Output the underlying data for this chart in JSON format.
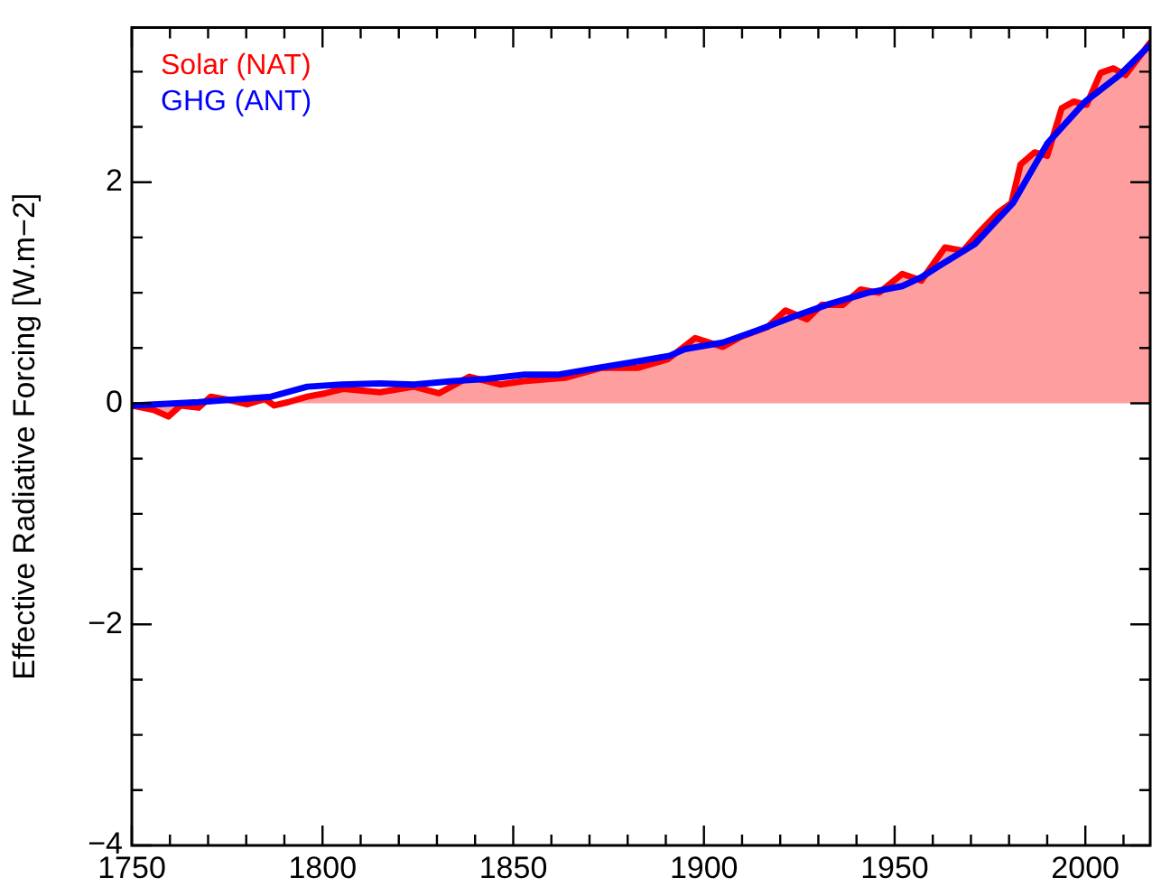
{
  "chart_data": {
    "type": "line",
    "ylabel": "Effective Radiative Forcing [W.m−2]",
    "xlim": [
      1750,
      2017
    ],
    "xticks": [
      1750,
      {
        "value": 1760,
        "label": null
      },
      {
        "value": 1770,
        "label": null
      },
      {
        "value": 1780,
        "label": null
      },
      {
        "value": 1790,
        "label": null
      },
      1800,
      {
        "value": 1810,
        "label": null
      },
      {
        "value": 1820,
        "label": null
      },
      {
        "value": 1830,
        "label": null
      },
      {
        "value": 1840,
        "label": null
      },
      1850,
      {
        "value": 1860,
        "label": null
      },
      {
        "value": 1870,
        "label": null
      },
      {
        "value": 1880,
        "label": null
      },
      {
        "value": 1890,
        "label": null
      },
      1900,
      {
        "value": 1910,
        "label": null
      },
      {
        "value": 1920,
        "label": null
      },
      {
        "value": 1930,
        "label": null
      },
      {
        "value": 1940,
        "label": null
      },
      1950,
      {
        "value": 1960,
        "label": null
      },
      {
        "value": 1970,
        "label": null
      },
      {
        "value": 1980,
        "label": null
      },
      {
        "value": 1990,
        "label": null
      },
      2000,
      {
        "value": 2010,
        "label": null
      }
    ],
    "ylim": [
      -4,
      3.4
    ],
    "yticks": [
      {
        "value": -4,
        "label": "−4"
      },
      {
        "value": -3.5,
        "label": null
      },
      {
        "value": -3,
        "label": null
      },
      {
        "value": -2.5,
        "label": null
      },
      {
        "value": -2,
        "label": "−2"
      },
      {
        "value": -1.5,
        "label": null
      },
      {
        "value": -1,
        "label": null
      },
      {
        "value": -0.5,
        "label": null
      },
      0,
      {
        "value": 0.5,
        "label": null
      },
      {
        "value": 1,
        "label": null
      },
      {
        "value": 1.5,
        "label": null
      },
      2,
      {
        "value": 2.5,
        "label": null
      },
      {
        "value": 3,
        "label": null
      }
    ],
    "grid": false,
    "legend": "top left",
    "series": [
      {
        "name": "Solar (NAT)",
        "type": "area",
        "color": "#ff0000",
        "x": [
          1750,
          1755.7,
          1759.6,
          1762.8,
          1767.5,
          1770.7,
          1775.4,
          1780.2,
          1784.9,
          1787.3,
          1791,
          1796,
          1800.7,
          1805.4,
          1815,
          1824,
          1830.5,
          1838.5,
          1846.5,
          1852.7,
          1863.6,
          1873,
          1882.6,
          1890.6,
          1897.7,
          1905,
          1909.6,
          1916.7,
          1921.4,
          1927,
          1930.9,
          1936.4,
          1941.1,
          1945.9,
          1952,
          1957,
          1963.2,
          1968,
          1972,
          1977.3,
          1980.6,
          1983,
          1986.7,
          1990,
          1993.8,
          1997,
          2000.3,
          2004,
          2007.4,
          2010.5,
          2016.9
        ],
        "values": [
          -0.02,
          -0.06,
          -0.12,
          -0.02,
          -0.04,
          0.06,
          0.03,
          -0.01,
          0.04,
          -0.02,
          0.01,
          0.06,
          0.09,
          0.13,
          0.1,
          0.15,
          0.09,
          0.24,
          0.17,
          0.2,
          0.23,
          0.32,
          0.32,
          0.4,
          0.59,
          0.51,
          0.6,
          0.69,
          0.84,
          0.76,
          0.89,
          0.89,
          1.03,
          1.0,
          1.17,
          1.11,
          1.41,
          1.38,
          1.54,
          1.73,
          1.81,
          2.16,
          2.27,
          2.24,
          2.67,
          2.73,
          2.7,
          2.99,
          3.03,
          2.97,
          3.26
        ]
      },
      {
        "name": "GHG (ANT)",
        "color": "#0000ff",
        "x": [
          1750,
          1767.5,
          1786.5,
          1796,
          1805,
          1815,
          1824,
          1834,
          1843,
          1853,
          1862,
          1872,
          1881,
          1891,
          1895,
          1905,
          1914,
          1924,
          1933,
          1943,
          1952,
          1957,
          1962,
          1971,
          1981,
          1990,
          2000,
          2009,
          2016.9
        ],
        "values": [
          -0.02,
          0.01,
          0.06,
          0.15,
          0.17,
          0.18,
          0.17,
          0.2,
          0.22,
          0.26,
          0.26,
          0.32,
          0.37,
          0.43,
          0.49,
          0.55,
          0.66,
          0.79,
          0.9,
          1.0,
          1.06,
          1.14,
          1.25,
          1.44,
          1.81,
          2.35,
          2.73,
          2.97,
          3.24
        ]
      }
    ]
  }
}
